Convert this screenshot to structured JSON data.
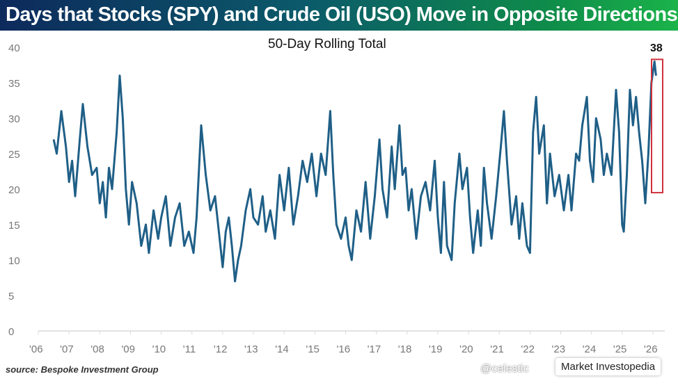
{
  "title": "Days that Stocks (SPY) and Crude Oil (USO) Move in Opposite Directions",
  "source": "source: Bespoke Investment Group",
  "watermark_handle": "@celestic",
  "watermark_label": "Market Investopedia",
  "chart_data": {
    "type": "line",
    "title": "50-Day Rolling Total",
    "xlabel": "",
    "ylabel": "",
    "ylim": [
      0,
      40
    ],
    "xlim": [
      2006,
      2026.2
    ],
    "yticks": [
      0,
      5,
      10,
      15,
      20,
      25,
      30,
      35,
      40
    ],
    "ytick_labels": [
      "0",
      "5",
      "10",
      "15",
      "20",
      "25",
      "30",
      "35",
      "40"
    ],
    "xtick_labels": [
      "'06",
      "'07",
      "'08",
      "'09",
      "'10",
      "'11",
      "'12",
      "'13",
      "'14",
      "'15",
      "'16",
      "'17",
      "'18",
      "'19",
      "'20",
      "'21",
      "'22",
      "'23",
      "'24",
      "'25",
      "'26"
    ],
    "grid": false,
    "series_color": "#1f5f87",
    "annotation": {
      "label": "38",
      "value": 38,
      "box_color": "#d0303a"
    },
    "series": [
      {
        "name": "50-Day Rolling Total",
        "x": [
          2006.5,
          2006.6,
          2006.75,
          2006.9,
          2007.0,
          2007.1,
          2007.2,
          2007.35,
          2007.45,
          2007.6,
          2007.75,
          2007.9,
          2008.0,
          2008.1,
          2008.2,
          2008.3,
          2008.4,
          2008.55,
          2008.65,
          2008.75,
          2008.85,
          2008.95,
          2009.05,
          2009.2,
          2009.35,
          2009.5,
          2009.6,
          2009.75,
          2009.9,
          2010.0,
          2010.15,
          2010.3,
          2010.45,
          2010.6,
          2010.75,
          2010.9,
          2011.05,
          2011.15,
          2011.3,
          2011.45,
          2011.6,
          2011.75,
          2011.9,
          2012.0,
          2012.1,
          2012.2,
          2012.3,
          2012.4,
          2012.5,
          2012.6,
          2012.75,
          2012.9,
          2013.0,
          2013.15,
          2013.3,
          2013.4,
          2013.55,
          2013.7,
          2013.85,
          2014.0,
          2014.15,
          2014.3,
          2014.45,
          2014.6,
          2014.75,
          2014.9,
          2015.05,
          2015.2,
          2015.35,
          2015.5,
          2015.6,
          2015.7,
          2015.85,
          2016.0,
          2016.1,
          2016.2,
          2016.35,
          2016.5,
          2016.65,
          2016.8,
          2016.95,
          2017.1,
          2017.2,
          2017.35,
          2017.5,
          2017.6,
          2017.75,
          2017.85,
          2017.95,
          2018.05,
          2018.15,
          2018.3,
          2018.45,
          2018.6,
          2018.75,
          2018.9,
          2019.0,
          2019.1,
          2019.2,
          2019.3,
          2019.45,
          2019.55,
          2019.7,
          2019.8,
          2019.95,
          2020.05,
          2020.15,
          2020.3,
          2020.4,
          2020.5,
          2020.6,
          2020.75,
          2020.9,
          2021.05,
          2021.15,
          2021.25,
          2021.4,
          2021.55,
          2021.65,
          2021.75,
          2021.9,
          2022.0,
          2022.1,
          2022.2,
          2022.3,
          2022.45,
          2022.55,
          2022.65,
          2022.8,
          2022.95,
          2023.1,
          2023.25,
          2023.35,
          2023.5,
          2023.6,
          2023.7,
          2023.85,
          2023.95,
          2024.05,
          2024.15,
          2024.3,
          2024.4,
          2024.5,
          2024.65,
          2024.8,
          2024.9,
          2025.0,
          2025.05,
          2025.15,
          2025.25,
          2025.35,
          2025.45,
          2025.55,
          2025.65,
          2025.75,
          2025.85,
          2025.95,
          2026.05,
          2026.1
        ],
        "values": [
          27,
          25,
          31,
          26,
          21,
          24,
          19,
          27,
          32,
          26,
          22,
          23,
          18,
          21,
          16,
          23,
          20,
          28,
          36,
          30,
          20,
          15,
          21,
          18,
          12,
          15,
          11,
          17,
          13,
          16,
          19,
          12,
          16,
          18,
          12,
          14,
          11,
          16,
          29,
          22,
          17,
          19,
          13,
          9,
          14,
          16,
          12,
          7,
          10,
          12,
          17,
          20,
          16,
          15,
          19,
          14,
          17,
          13,
          22,
          17,
          23,
          15,
          19,
          24,
          21,
          25,
          19,
          25,
          22,
          31,
          22,
          15,
          13,
          16,
          12,
          10,
          17,
          14,
          21,
          13,
          19,
          27,
          20,
          16,
          26,
          20,
          29,
          22,
          23,
          17,
          20,
          13,
          19,
          21,
          17,
          24,
          16,
          11,
          21,
          12,
          10,
          18,
          25,
          20,
          23,
          16,
          11,
          17,
          12,
          23,
          18,
          13,
          19,
          26,
          31,
          24,
          15,
          19,
          13,
          18,
          12,
          11,
          28,
          33,
          25,
          29,
          18,
          25,
          19,
          22,
          17,
          22,
          17,
          25,
          24,
          29,
          33,
          24,
          21,
          30,
          27,
          22,
          25,
          22,
          34,
          28,
          15,
          14,
          22,
          34,
          29,
          33,
          28,
          24,
          18,
          25,
          35,
          38,
          36
        ]
      }
    ]
  }
}
